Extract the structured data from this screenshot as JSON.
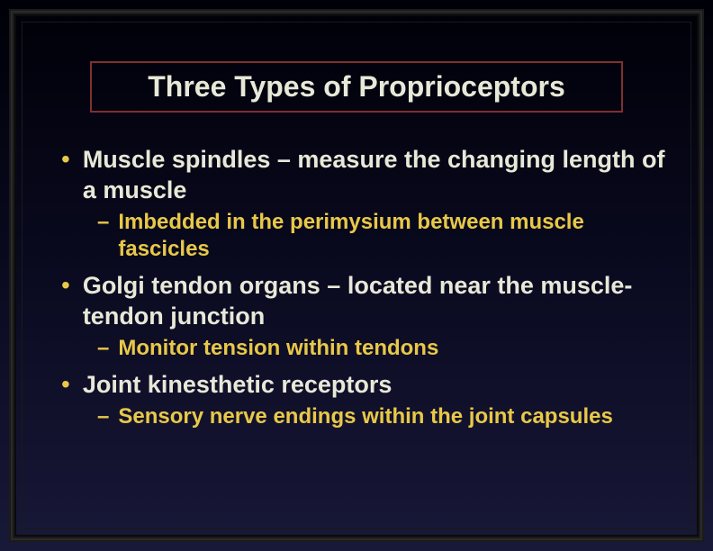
{
  "title": "Three Types of Proprioceptors",
  "colors": {
    "background_gradient_top": "#000008",
    "background_gradient_mid": "#0a0a20",
    "background_gradient_bottom": "#181838",
    "title_border": "#803030",
    "title_text": "#e8e8d8",
    "bullet_l1_text": "#e8e8d8",
    "bullet_l2_text": "#e8c848",
    "bullet_dot": "#e8c848",
    "bullet_dash": "#e8c848"
  },
  "typography": {
    "title_fontsize": 32,
    "l1_fontsize": 27,
    "l2_fontsize": 24,
    "font_weight": "bold",
    "font_family": "Arial"
  },
  "bullets": [
    {
      "level": 1,
      "text": "Muscle spindles – measure the changing length of a muscle"
    },
    {
      "level": 2,
      "text": "Imbedded in the perimysium between muscle fascicles"
    },
    {
      "level": 1,
      "text": "Golgi tendon organs – located near the muscle-tendon junction"
    },
    {
      "level": 2,
      "text": "Monitor tension within tendons"
    },
    {
      "level": 1,
      "text": "Joint kinesthetic receptors"
    },
    {
      "level": 2,
      "text": "Sensory nerve endings within the joint capsules"
    }
  ]
}
